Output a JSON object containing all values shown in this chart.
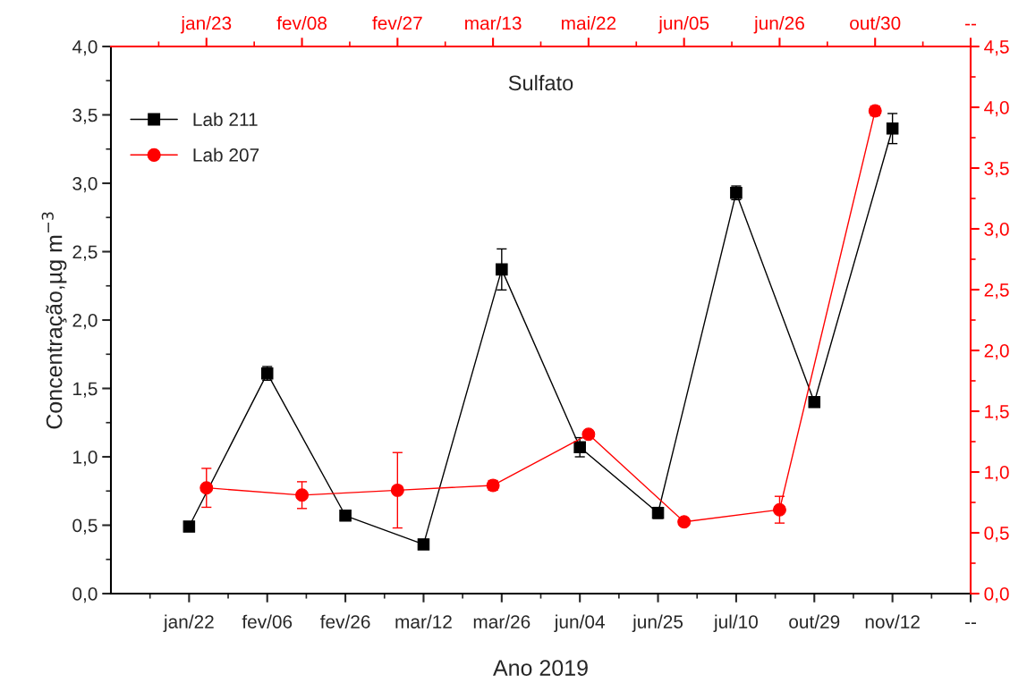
{
  "chart_data": [
    {
      "type": "line",
      "title": "Sulfato",
      "xlabel": "Ano 2019",
      "ylabel": "Concentração,µg m$^{−3}$",
      "categories": [
        "jan/22",
        "fev/06",
        "fev/26",
        "mar/12",
        "mar/26",
        "jun/04",
        "jun/25",
        "jul/10",
        "out/29",
        "nov/12",
        "--"
      ],
      "series": [
        {
          "name": "Lab 211",
          "color": "#000000",
          "marker": "square",
          "values": [
            0.49,
            1.61,
            0.57,
            0.36,
            2.37,
            1.07,
            0.59,
            2.93,
            1.4,
            3.4,
            null
          ],
          "errors": [
            null,
            0.05,
            null,
            null,
            0.15,
            0.07,
            0.04,
            0.05,
            null,
            0.11,
            null
          ]
        }
      ],
      "ylim": [
        0,
        4
      ],
      "yticks": [
        {
          "value": 0,
          "label": "0,0"
        },
        {
          "value": 0.5,
          "label": "0,5"
        },
        {
          "value": 1,
          "label": "1,0"
        },
        {
          "value": 1.5,
          "label": "1,5"
        },
        {
          "value": 2,
          "label": "2,0"
        },
        {
          "value": 2.5,
          "label": "2,5"
        },
        {
          "value": 3,
          "label": "3,0"
        },
        {
          "value": 3.5,
          "label": "3,5"
        },
        {
          "value": 4,
          "label": "4,0"
        }
      ],
      "grid": false,
      "legend": "top left",
      "line_style": "solid"
    },
    {
      "type": "line",
      "categories": [
        "jan/23",
        "fev/08",
        "fev/27",
        "mar/13",
        "mai/22",
        "jun/05",
        "jun/26",
        "out/30",
        "--"
      ],
      "series": [
        {
          "name": "Lab 207",
          "color": "#ff0000",
          "marker": "circle",
          "values": [
            0.87,
            0.81,
            0.85,
            0.89,
            1.31,
            0.59,
            0.69,
            3.97,
            null
          ],
          "errors": [
            0.16,
            0.11,
            0.31,
            0.04,
            null,
            null,
            0.11,
            0.04,
            null
          ]
        }
      ],
      "ylim": [
        0,
        4.5
      ],
      "yticks": [
        {
          "value": 0,
          "label": "0,0"
        },
        {
          "value": 0.5,
          "label": "0,5"
        },
        {
          "value": 1,
          "label": "1,0"
        },
        {
          "value": 1.5,
          "label": "1,5"
        },
        {
          "value": 2,
          "label": "2,0"
        },
        {
          "value": 2.5,
          "label": "2,5"
        },
        {
          "value": 3,
          "label": "3,0"
        },
        {
          "value": 3.5,
          "label": "3,5"
        },
        {
          "value": 4,
          "label": "4,0"
        },
        {
          "value": 4.5,
          "label": "4,5"
        }
      ],
      "grid": false,
      "legend": "top left",
      "line_style": "solid"
    }
  ]
}
